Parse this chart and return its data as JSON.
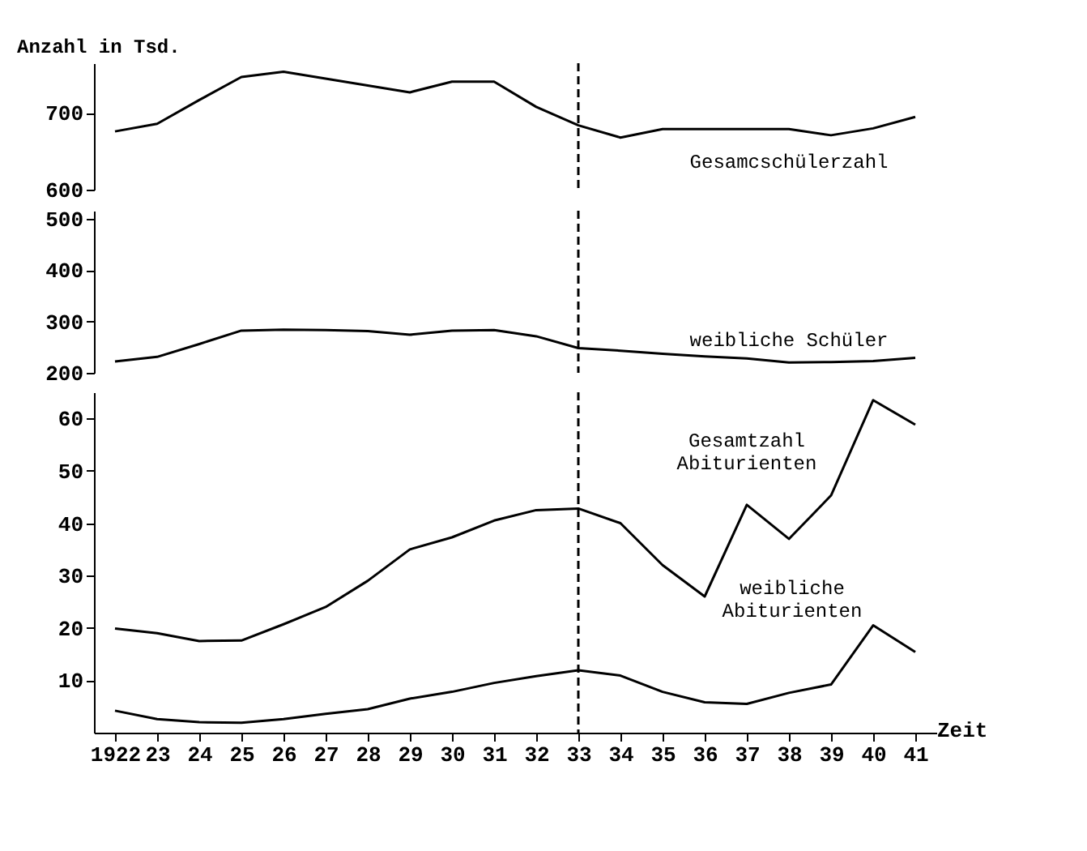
{
  "chart_data": [
    {
      "type": "line",
      "ylabel": "Anzahl in Tsd.",
      "categories": [
        "1922",
        "23",
        "24",
        "25",
        "26",
        "27",
        "28",
        "29",
        "30",
        "31",
        "32",
        "33",
        "34",
        "35",
        "36",
        "37",
        "38",
        "39",
        "40",
        "41"
      ],
      "series": [
        {
          "name": "Gesamcschülerzahl",
          "color": "#000000",
          "values": [
            676,
            686,
            717,
            747,
            754,
            745,
            736,
            727,
            741,
            741,
            708,
            684,
            668,
            679,
            679,
            679,
            679,
            671,
            680,
            695
          ]
        }
      ],
      "ylim": [
        600,
        765
      ],
      "yticks": [
        600,
        700
      ],
      "tick_labels": "y",
      "grid": false,
      "marker": "none",
      "line_style": "solid",
      "ref_lines": [
        {
          "axis": "x",
          "value": "33",
          "line_style": "dashed",
          "color": "#000000"
        }
      ]
    },
    {
      "type": "line",
      "categories": [
        "1922",
        "23",
        "24",
        "25",
        "26",
        "27",
        "28",
        "29",
        "30",
        "31",
        "32",
        "33",
        "34",
        "35",
        "36",
        "37",
        "38",
        "39",
        "40",
        "41"
      ],
      "series": [
        {
          "name": "weibliche Schüler",
          "color": "#000000",
          "values": [
            222,
            231,
            256,
            282,
            284,
            283,
            281,
            274,
            282,
            283,
            271,
            248,
            243,
            237,
            232,
            228,
            220,
            221,
            223,
            229
          ]
        }
      ],
      "ylim": [
        200,
        515
      ],
      "yticks": [
        200,
        300,
        400,
        500
      ],
      "tick_labels": "y",
      "grid": false,
      "marker": "none",
      "line_style": "solid",
      "ref_lines": [
        {
          "axis": "x",
          "value": "33",
          "line_style": "dashed",
          "color": "#000000"
        }
      ]
    },
    {
      "type": "line",
      "xlabel": "Zeit",
      "categories": [
        "1922",
        "23",
        "24",
        "25",
        "26",
        "27",
        "28",
        "29",
        "30",
        "31",
        "32",
        "33",
        "34",
        "35",
        "36",
        "37",
        "38",
        "39",
        "40",
        "41"
      ],
      "series": [
        {
          "name": "Gesamtzahl Abiturienten",
          "color": "#000000",
          "values": [
            19.9,
            19,
            17.5,
            17.6,
            20.7,
            24,
            29,
            35,
            37.3,
            40.5,
            42.5,
            42.8,
            40,
            32,
            26,
            43.5,
            37,
            45.3,
            63.5,
            58.8
          ]
        },
        {
          "name": "weibliche Abiturienten",
          "color": "#000000",
          "values": [
            4.2,
            2.6,
            2,
            1.9,
            2.6,
            3.6,
            4.5,
            6.5,
            7.8,
            9.5,
            10.8,
            11.9,
            10.9,
            7.8,
            5.8,
            5.5,
            7.6,
            9.2,
            20.5,
            15.4
          ]
        }
      ],
      "ylim": [
        0,
        65
      ],
      "yticks": [
        10,
        20,
        30,
        40,
        50,
        60
      ],
      "grid": false,
      "marker": "none",
      "line_style": "solid",
      "ref_lines": [
        {
          "axis": "x",
          "value": "33",
          "line_style": "dashed",
          "color": "#000000"
        }
      ]
    }
  ]
}
